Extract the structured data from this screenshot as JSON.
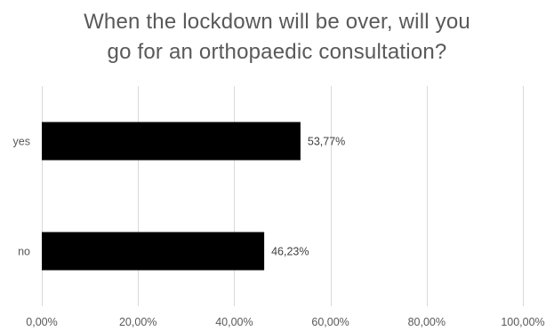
{
  "chart_data": {
    "type": "bar",
    "orientation": "horizontal",
    "title_lines": [
      "When the lockdown will be over, will you",
      "go for an orthopaedic consultation?"
    ],
    "categories": [
      "yes",
      "no"
    ],
    "values": [
      53.77,
      46.23
    ],
    "data_labels": [
      "53,77%",
      "46,23%"
    ],
    "xlim": [
      0,
      100
    ],
    "x_ticks": [
      0,
      20,
      40,
      60,
      80,
      100
    ],
    "x_tick_labels": [
      "0,00%",
      "20,00%",
      "40,00%",
      "60,00%",
      "80,00%",
      "100,00%"
    ],
    "grid": true,
    "legend": "none",
    "colors": {
      "bar": "#000000",
      "gridline": "#d9d9d9",
      "text": "#595959"
    }
  }
}
